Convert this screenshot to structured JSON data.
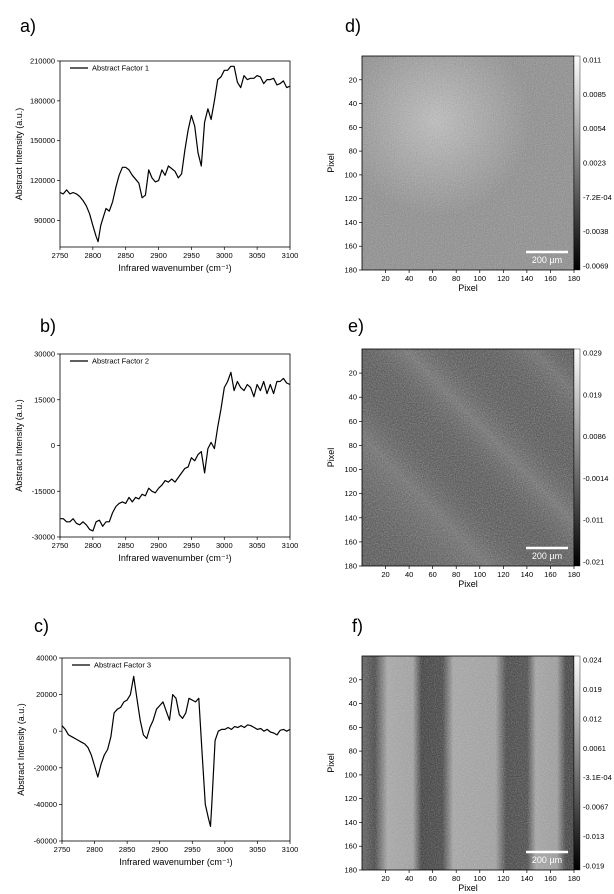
{
  "chart_data": [
    {
      "type": "line",
      "panel_label": "a)",
      "xlabel": "Infrared wavenumber (cm⁻¹)",
      "ylabel": "Abstract Intensity (a.u.)",
      "xlim": [
        2750,
        3100
      ],
      "ylim": [
        70000,
        210000
      ],
      "xticks": [
        2750,
        2800,
        2850,
        2900,
        2950,
        3000,
        3050,
        3100
      ],
      "yticks": [
        90000,
        120000,
        150000,
        180000,
        210000
      ],
      "series": [
        {
          "name": "Abstract Factor 1",
          "x": [
            2750,
            2755,
            2760,
            2765,
            2770,
            2775,
            2780,
            2785,
            2790,
            2795,
            2800,
            2805,
            2808,
            2812,
            2815,
            2820,
            2825,
            2830,
            2835,
            2840,
            2845,
            2850,
            2855,
            2860,
            2865,
            2870,
            2875,
            2880,
            2885,
            2890,
            2895,
            2900,
            2905,
            2910,
            2915,
            2920,
            2925,
            2930,
            2935,
            2940,
            2945,
            2950,
            2955,
            2960,
            2965,
            2970,
            2975,
            2980,
            2985,
            2990,
            2995,
            3000,
            3005,
            3010,
            3015,
            3020,
            3025,
            3030,
            3035,
            3040,
            3045,
            3050,
            3055,
            3060,
            3065,
            3070,
            3075,
            3080,
            3085,
            3090,
            3095,
            3100
          ],
          "y": [
            111000,
            110000,
            113000,
            110000,
            111000,
            110000,
            108000,
            105000,
            101000,
            95000,
            86000,
            78000,
            74000,
            86000,
            91000,
            99000,
            97000,
            104000,
            115000,
            124000,
            130000,
            130000,
            128000,
            124000,
            121000,
            118000,
            107000,
            109000,
            128000,
            122000,
            119000,
            120000,
            128000,
            124000,
            131000,
            129000,
            127000,
            122000,
            125000,
            143000,
            158000,
            169000,
            161000,
            141000,
            131000,
            164000,
            174000,
            166000,
            180000,
            196000,
            198000,
            203000,
            203000,
            206000,
            206000,
            194000,
            190000,
            199000,
            196000,
            197000,
            197000,
            199000,
            198000,
            193000,
            196000,
            196000,
            197000,
            192000,
            193000,
            195000,
            190000,
            191000
          ]
        }
      ]
    },
    {
      "type": "line",
      "panel_label": "b)",
      "xlabel": "Infrared wavenumber (cm⁻¹)",
      "ylabel": "Abstract Intensity (a.u.)",
      "xlim": [
        2750,
        3100
      ],
      "ylim": [
        -30000,
        30000
      ],
      "xticks": [
        2750,
        2800,
        2850,
        2900,
        2950,
        3000,
        3050,
        3100
      ],
      "yticks": [
        -30000,
        -15000,
        0,
        15000,
        30000
      ],
      "series": [
        {
          "name": "Abstract Factor 2",
          "x": [
            2750,
            2755,
            2760,
            2765,
            2770,
            2775,
            2780,
            2785,
            2790,
            2795,
            2800,
            2805,
            2810,
            2815,
            2820,
            2825,
            2830,
            2835,
            2840,
            2845,
            2850,
            2855,
            2860,
            2865,
            2870,
            2875,
            2880,
            2885,
            2890,
            2895,
            2900,
            2905,
            2910,
            2915,
            2920,
            2925,
            2930,
            2935,
            2940,
            2945,
            2950,
            2955,
            2960,
            2965,
            2970,
            2975,
            2980,
            2985,
            2990,
            2995,
            3000,
            3005,
            3010,
            3015,
            3020,
            3025,
            3030,
            3035,
            3040,
            3045,
            3050,
            3055,
            3060,
            3065,
            3070,
            3075,
            3080,
            3085,
            3090,
            3095,
            3100
          ],
          "y": [
            -24000,
            -24000,
            -25000,
            -25000,
            -24000,
            -25500,
            -26000,
            -25000,
            -26000,
            -27500,
            -28000,
            -25000,
            -24500,
            -26500,
            -25000,
            -25000,
            -22000,
            -20000,
            -19000,
            -18500,
            -19000,
            -17000,
            -18500,
            -17000,
            -17500,
            -16000,
            -16500,
            -14000,
            -15000,
            -15500,
            -14000,
            -13000,
            -11500,
            -12000,
            -11000,
            -12000,
            -10500,
            -9000,
            -7500,
            -7000,
            -4000,
            -5000,
            -3000,
            -2000,
            -9000,
            -1000,
            1000,
            -1000,
            6000,
            12000,
            19000,
            21000,
            24000,
            18000,
            21000,
            19000,
            18000,
            20000,
            19000,
            16000,
            20000,
            18000,
            21000,
            17000,
            20000,
            17000,
            21000,
            21000,
            22000,
            20500,
            20000
          ]
        }
      ]
    },
    {
      "type": "line",
      "panel_label": "c)",
      "xlabel": "Infrared wavenumber (cm⁻¹)",
      "ylabel": "Abstract Intensity (a.u.)",
      "xlim": [
        2750,
        3100
      ],
      "ylim": [
        -60000,
        40000
      ],
      "xticks": [
        2750,
        2800,
        2850,
        2900,
        2950,
        3000,
        3050,
        3100
      ],
      "yticks": [
        -60000,
        -40000,
        -20000,
        0,
        20000,
        40000
      ],
      "series": [
        {
          "name": "Abstract Factor 3",
          "x": [
            2750,
            2755,
            2760,
            2765,
            2770,
            2775,
            2780,
            2785,
            2790,
            2795,
            2800,
            2805,
            2810,
            2815,
            2820,
            2825,
            2830,
            2835,
            2840,
            2845,
            2850,
            2855,
            2860,
            2865,
            2870,
            2875,
            2880,
            2885,
            2890,
            2895,
            2900,
            2905,
            2910,
            2915,
            2920,
            2925,
            2930,
            2935,
            2940,
            2945,
            2950,
            2955,
            2960,
            2965,
            2970,
            2975,
            2978,
            2980,
            2985,
            2990,
            2995,
            3000,
            3005,
            3010,
            3015,
            3020,
            3025,
            3030,
            3035,
            3040,
            3045,
            3050,
            3055,
            3060,
            3065,
            3070,
            3075,
            3080,
            3085,
            3090,
            3095,
            3100
          ],
          "y": [
            3000,
            1000,
            -2000,
            -3000,
            -4000,
            -5000,
            -6000,
            -7000,
            -9000,
            -13000,
            -19000,
            -25000,
            -18000,
            -13000,
            -10000,
            -3000,
            10000,
            12000,
            13000,
            16000,
            17000,
            20000,
            30000,
            18000,
            6000,
            -2000,
            -4000,
            2000,
            6000,
            12000,
            14000,
            16000,
            11000,
            6000,
            20000,
            18000,
            9000,
            7000,
            10000,
            18000,
            17000,
            16000,
            18000,
            -12000,
            -40000,
            -48000,
            -52000,
            -40000,
            -5000,
            0,
            1000,
            1000,
            2000,
            1000,
            2500,
            2000,
            3000,
            2000,
            3500,
            3000,
            2000,
            1000,
            1500,
            0,
            1000,
            -500,
            -1000,
            -2000,
            500,
            1000,
            0,
            1000
          ]
        }
      ]
    },
    {
      "type": "heatmap",
      "panel_label": "d)",
      "xlabel": "Pixel",
      "ylabel": "Pixel",
      "xlim": [
        0,
        180
      ],
      "ylim": [
        0,
        180
      ],
      "xticks": [
        20,
        40,
        60,
        80,
        100,
        120,
        140,
        160,
        180
      ],
      "yticks": [
        20,
        40,
        60,
        80,
        100,
        120,
        140,
        160,
        180
      ],
      "colorbar_ticks": [
        "0.011",
        "0.0085",
        "0.0054",
        "0.0023",
        "-7.2E-04",
        "-0.0038",
        "-0.0069"
      ],
      "scale_bar": "200 µm",
      "pattern": "noisy grey, brighter region upper-centre-left"
    },
    {
      "type": "heatmap",
      "panel_label": "e)",
      "xlabel": "Pixel",
      "ylabel": "Pixel",
      "xlim": [
        0,
        180
      ],
      "ylim": [
        0,
        180
      ],
      "xticks": [
        20,
        40,
        60,
        80,
        100,
        120,
        140,
        160,
        180
      ],
      "yticks": [
        20,
        40,
        60,
        80,
        100,
        120,
        140,
        160,
        180
      ],
      "colorbar_ticks": [
        "0.029",
        "0.019",
        "0.0086",
        "-0.0014",
        "-0.011",
        "-0.021"
      ],
      "scale_bar": "200 µm",
      "pattern": "noisy dark grey with diagonal brighter streaks"
    },
    {
      "type": "heatmap",
      "panel_label": "f)",
      "xlabel": "Pixel",
      "ylabel": "Pixel",
      "xlim": [
        0,
        180
      ],
      "ylim": [
        0,
        180
      ],
      "xticks": [
        20,
        40,
        60,
        80,
        100,
        120,
        140,
        160,
        180
      ],
      "yticks": [
        20,
        40,
        60,
        80,
        100,
        120,
        140,
        160,
        180
      ],
      "colorbar_ticks": [
        "0.024",
        "0.019",
        "0.012",
        "0.0061",
        "-3.1E-04",
        "-0.0067",
        "-0.013",
        "-0.019"
      ],
      "scale_bar": "200 µm",
      "pattern": "vertical stripes, dark at pixels 0-10, 40-55, 80-135, 160-180"
    }
  ]
}
